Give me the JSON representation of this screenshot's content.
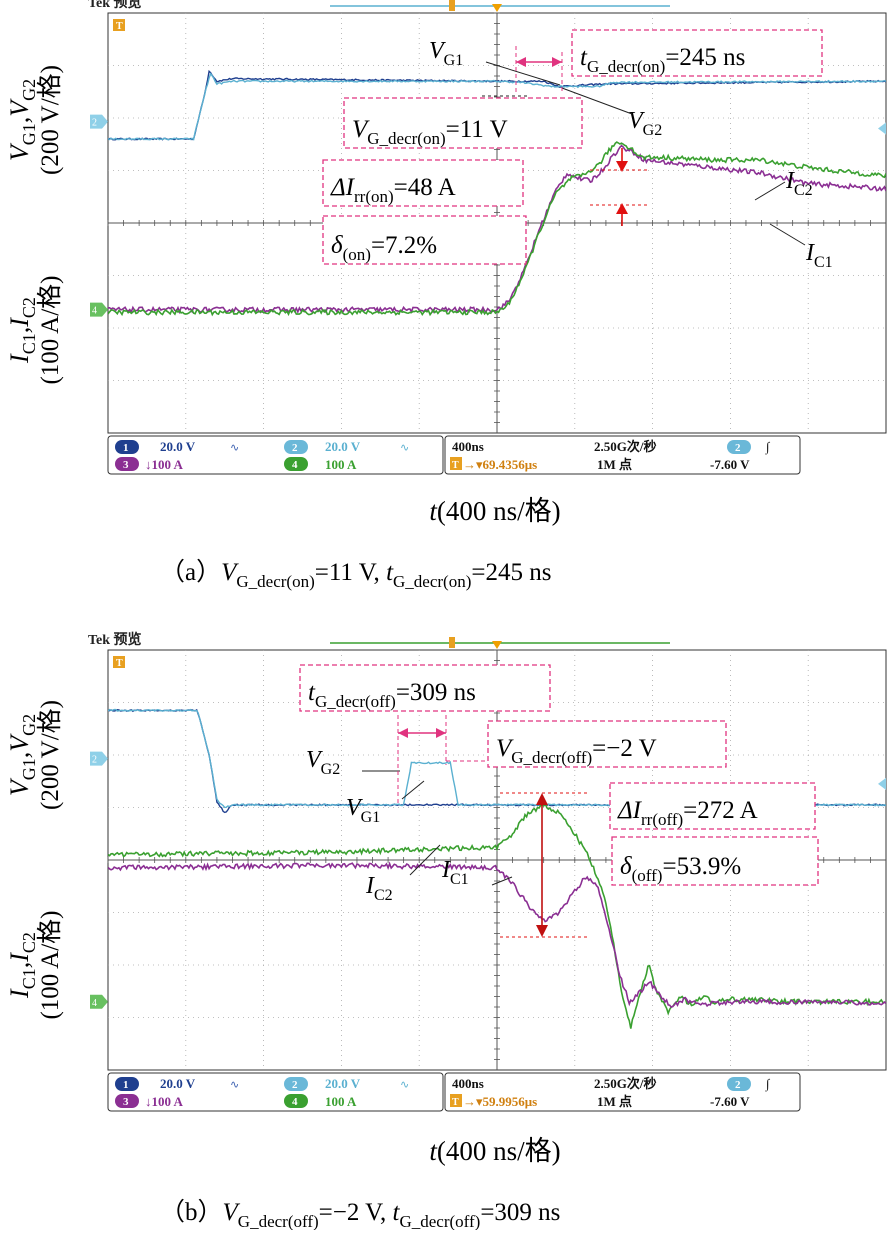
{
  "chart_data": [
    {
      "type": "line",
      "panel": "a",
      "title": "Tek 预览",
      "caption": {
        "prefix": "（a）",
        "v_sym": "V",
        "v_sub": "G_decr(on)",
        "v_val": "=11 V, ",
        "t_sym": "t",
        "t_sub": "G_decr(on)",
        "t_val": "=245 ns"
      },
      "xlabel": {
        "sym": "t",
        "rest": "(400 ns/格)"
      },
      "ylabel_top": {
        "line1": "V",
        "s1": "G1",
        "comma": ",V",
        "s2": "G2",
        "line2": "(200 V/格)"
      },
      "ylabel_bottom": {
        "line1": "I",
        "s1": "C1",
        "comma": ",I",
        "s2": "C2",
        "line2": "(100 A/格)"
      },
      "x_div_ns": 400,
      "x_range_div": [
        -5,
        5
      ],
      "y_range_div": [
        -4,
        4
      ],
      "series": [
        {
          "name": "V_G1",
          "color": "#1f3f8f",
          "points": [
            [
              -5,
              1.6
            ],
            [
              -3.9,
              1.6
            ],
            [
              -3.75,
              2.5
            ],
            [
              -3.7,
              2.9
            ],
            [
              -3.6,
              2.7
            ],
            [
              -3.4,
              2.75
            ],
            [
              0,
              2.7
            ],
            [
              0.6,
              2.7
            ],
            [
              0.8,
              2.6
            ],
            [
              1.4,
              2.65
            ],
            [
              5,
              2.7
            ]
          ]
        },
        {
          "name": "V_G2",
          "color": "#5ab0d0",
          "points": [
            [
              -5,
              1.6
            ],
            [
              -3.9,
              1.6
            ],
            [
              -3.75,
              2.5
            ],
            [
              -3.68,
              2.85
            ],
            [
              -3.6,
              2.65
            ],
            [
              -3.4,
              2.7
            ],
            [
              0,
              2.7
            ],
            [
              0.3,
              2.68
            ],
            [
              0.7,
              2.6
            ],
            [
              1.3,
              2.6
            ],
            [
              1.5,
              2.68
            ],
            [
              5,
              2.7
            ]
          ]
        },
        {
          "name": "I_C1",
          "color": "#8b2f93",
          "points": [
            [
              -5,
              -1.65
            ],
            [
              0,
              -1.65
            ],
            [
              0.15,
              -1.5
            ],
            [
              0.35,
              -0.9
            ],
            [
              0.55,
              -0.1
            ],
            [
              0.75,
              0.6
            ],
            [
              0.9,
              0.95
            ],
            [
              1.05,
              0.85
            ],
            [
              1.2,
              0.8
            ],
            [
              1.35,
              1.0
            ],
            [
              1.5,
              1.3
            ],
            [
              1.6,
              1.45
            ],
            [
              1.75,
              1.35
            ],
            [
              1.9,
              1.2
            ],
            [
              2.2,
              1.15
            ],
            [
              2.8,
              1.05
            ],
            [
              3.4,
              0.95
            ],
            [
              4,
              0.75
            ],
            [
              5,
              0.65
            ]
          ]
        },
        {
          "name": "I_C2",
          "color": "#3aa030",
          "points": [
            [
              -5,
              -1.7
            ],
            [
              0,
              -1.7
            ],
            [
              0.15,
              -1.55
            ],
            [
              0.35,
              -0.95
            ],
            [
              0.55,
              -0.15
            ],
            [
              0.75,
              0.55
            ],
            [
              0.95,
              0.85
            ],
            [
              1.1,
              0.9
            ],
            [
              1.3,
              1.1
            ],
            [
              1.45,
              1.4
            ],
            [
              1.55,
              1.55
            ],
            [
              1.7,
              1.45
            ],
            [
              1.85,
              1.25
            ],
            [
              2.1,
              1.25
            ],
            [
              2.8,
              1.2
            ],
            [
              3.4,
              1.2
            ],
            [
              3.8,
              1.1
            ],
            [
              4.3,
              1.0
            ],
            [
              5,
              0.9
            ]
          ]
        }
      ],
      "channels": {
        "ch1": "20.0 V",
        "ch2": "20.0 V",
        "ch3": "↓100 A",
        "ch4": "100 A",
        "timebase": "400ns",
        "trigger_time": "▾69.4356μs",
        "sample_rate": "2.50G次/秒",
        "record": "1M 点",
        "trig_ch": "2",
        "trig_slope": "∫",
        "trig_level": "-7.60 V"
      },
      "annotations": {
        "t_box": {
          "sym": "t",
          "sub": "G_decr(on)",
          "val": "=245 ns"
        },
        "v_box": {
          "sym": "V",
          "sub": "G_decr(on)",
          "val": "=11 V"
        },
        "di_box": {
          "sym": "ΔI",
          "sub": "rr(on)",
          "val": "=48 A"
        },
        "d_box": {
          "sym": "δ",
          "sub": "(on)",
          "val": "=7.2%"
        },
        "lbl_vg1": {
          "sym": "V",
          "sub": "G1"
        },
        "lbl_vg2": {
          "sym": "V",
          "sub": "G2"
        },
        "lbl_ic1": {
          "sym": "I",
          "sub": "C1"
        },
        "lbl_ic2": {
          "sym": "I",
          "sub": "C2"
        }
      },
      "colors": {
        "accent_dash": "#e0337f",
        "arrow_red": "#e01010",
        "grid": "#bbbbbb"
      }
    },
    {
      "type": "line",
      "panel": "b",
      "title": "Tek 预览",
      "caption": {
        "prefix": "（b）",
        "v_sym": "V",
        "v_sub": "G_decr(off)",
        "v_val": "=−2 V, ",
        "t_sym": "t",
        "t_sub": "G_decr(off)",
        "t_val": "=309 ns"
      },
      "xlabel": {
        "sym": "t",
        "rest": "(400 ns/格)"
      },
      "ylabel_top": {
        "line1": "V",
        "s1": "G1",
        "comma": ",V",
        "s2": "G2",
        "line2": "(200 V/格)"
      },
      "ylabel_bottom": {
        "line1": "I",
        "s1": "C1",
        "comma": ",I",
        "s2": "C2",
        "line2": "(100 A/格)"
      },
      "x_div_ns": 400,
      "x_range_div": [
        -5,
        5
      ],
      "y_range_div": [
        -4,
        4
      ],
      "series": [
        {
          "name": "V_G1",
          "color": "#1f3f8f",
          "points": [
            [
              -5,
              2.85
            ],
            [
              -3.85,
              2.85
            ],
            [
              -3.7,
              2.0
            ],
            [
              -3.6,
              1.1
            ],
            [
              -3.5,
              0.9
            ],
            [
              -3.4,
              1.05
            ],
            [
              0,
              1.05
            ],
            [
              5,
              1.05
            ]
          ]
        },
        {
          "name": "V_G2",
          "color": "#5ab0d0",
          "points": [
            [
              -5,
              2.85
            ],
            [
              -3.85,
              2.85
            ],
            [
              -3.7,
              2.0
            ],
            [
              -3.6,
              1.15
            ],
            [
              -3.5,
              1.0
            ],
            [
              -3.4,
              1.05
            ],
            [
              -1.2,
              1.05
            ],
            [
              -1.1,
              1.85
            ],
            [
              -0.6,
              1.85
            ],
            [
              -0.5,
              1.05
            ],
            [
              5,
              1.05
            ]
          ]
        },
        {
          "name": "I_C2",
          "color": "#3aa030",
          "points": [
            [
              -5,
              0.1
            ],
            [
              -2,
              0.15
            ],
            [
              0,
              0.25
            ],
            [
              0.2,
              0.5
            ],
            [
              0.4,
              0.9
            ],
            [
              0.6,
              1.05
            ],
            [
              0.8,
              0.9
            ],
            [
              1.0,
              0.5
            ],
            [
              1.2,
              0.0
            ],
            [
              1.4,
              -0.8
            ],
            [
              1.5,
              -1.6
            ],
            [
              1.6,
              -2.5
            ],
            [
              1.72,
              -3.2
            ],
            [
              1.82,
              -2.6
            ],
            [
              1.95,
              -2.0
            ],
            [
              2.05,
              -2.5
            ],
            [
              2.2,
              -2.9
            ],
            [
              2.35,
              -2.6
            ],
            [
              2.5,
              -2.75
            ],
            [
              2.65,
              -2.6
            ],
            [
              2.8,
              -2.7
            ],
            [
              3,
              -2.65
            ],
            [
              4,
              -2.7
            ],
            [
              5,
              -2.7
            ]
          ]
        },
        {
          "name": "I_C1",
          "color": "#8b2f93",
          "points": [
            [
              -5,
              -0.15
            ],
            [
              -2,
              -0.1
            ],
            [
              0,
              -0.15
            ],
            [
              0.2,
              -0.45
            ],
            [
              0.45,
              -0.95
            ],
            [
              0.6,
              -1.15
            ],
            [
              0.8,
              -1.0
            ],
            [
              1.0,
              -0.6
            ],
            [
              1.15,
              -0.3
            ],
            [
              1.3,
              -0.5
            ],
            [
              1.45,
              -1.4
            ],
            [
              1.6,
              -2.3
            ],
            [
              1.7,
              -2.7
            ],
            [
              1.85,
              -2.5
            ],
            [
              1.95,
              -2.3
            ],
            [
              2.1,
              -2.6
            ],
            [
              2.25,
              -2.8
            ],
            [
              2.4,
              -2.65
            ],
            [
              2.6,
              -2.75
            ],
            [
              3,
              -2.7
            ],
            [
              5,
              -2.72
            ]
          ]
        }
      ],
      "channels": {
        "ch1": "20.0 V",
        "ch2": "20.0 V",
        "ch3": "↓100 A",
        "ch4": "100 A",
        "timebase": "400ns",
        "trigger_time": "▾59.9956μs",
        "sample_rate": "2.50G次/秒",
        "record": "1M 点",
        "trig_ch": "2",
        "trig_slope": "∫",
        "trig_level": "-7.60 V"
      },
      "annotations": {
        "t_box": {
          "sym": "t",
          "sub": "G_decr(off)",
          "val": "=309 ns"
        },
        "v_box": {
          "sym": "V",
          "sub": "G_decr(off)",
          "val": "=−2 V"
        },
        "di_box": {
          "sym": "ΔI",
          "sub": "rr(off)",
          "val": "=272 A"
        },
        "d_box": {
          "sym": "δ",
          "sub": "(off)",
          "val": "=53.9%"
        },
        "lbl_vg1": {
          "sym": "V",
          "sub": "G1"
        },
        "lbl_vg2": {
          "sym": "V",
          "sub": "G2"
        },
        "lbl_ic1": {
          "sym": "I",
          "sub": "C1"
        },
        "lbl_ic2": {
          "sym": "I",
          "sub": "C2"
        }
      },
      "colors": {
        "accent_dash": "#e0337f",
        "arrow_red": "#e01010",
        "grid": "#bbbbbb"
      }
    }
  ]
}
